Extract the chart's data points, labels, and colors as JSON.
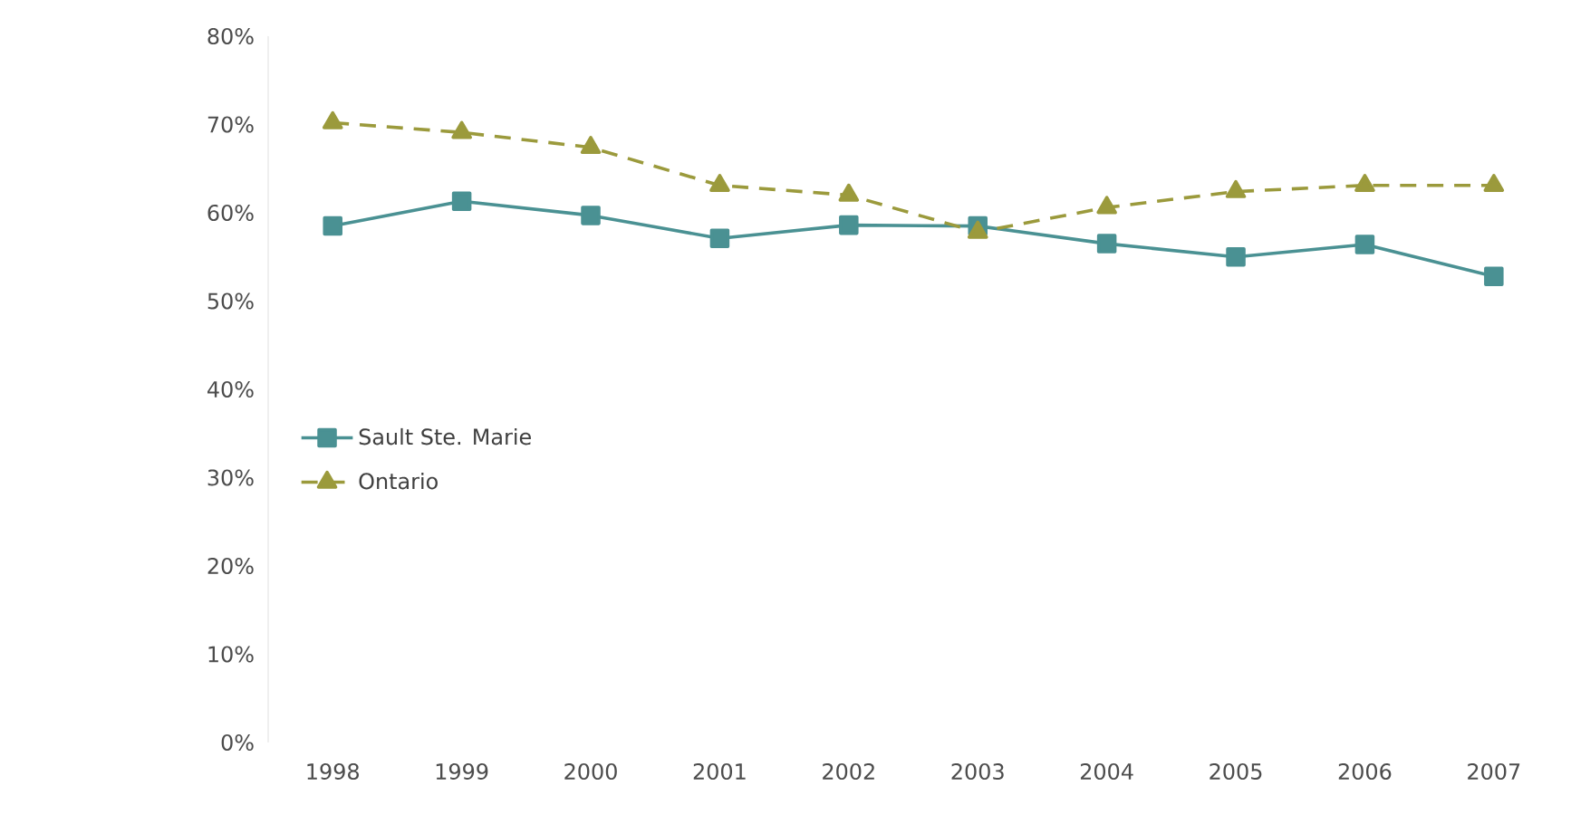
{
  "chart_data": {
    "type": "line",
    "categories": [
      "1998",
      "1999",
      "2000",
      "2001",
      "2002",
      "2003",
      "2004",
      "2005",
      "2006",
      "2007"
    ],
    "series": [
      {
        "name": "Sault Ste. Marie",
        "color": "#4a9193",
        "marker": "square",
        "line_style": "solid",
        "values": [
          58.5,
          61.3,
          59.7,
          57.1,
          58.6,
          58.5,
          56.5,
          55,
          56.4,
          52.8
        ]
      },
      {
        "name": "Ontario",
        "color": "#9b9a3c",
        "marker": "triangle",
        "line_style": "dashed",
        "values": [
          70.2,
          69.1,
          67.4,
          63.1,
          62,
          57.8,
          60.6,
          62.4,
          63.1,
          63.1
        ]
      }
    ],
    "ylim": [
      0,
      80
    ],
    "yticks": [
      {
        "value": 0,
        "label": "0%"
      },
      {
        "value": 10,
        "label": "10%"
      },
      {
        "value": 20,
        "label": "20%"
      },
      {
        "value": 30,
        "label": "30%"
      },
      {
        "value": 40,
        "label": "40%"
      },
      {
        "value": 50,
        "label": "50%"
      },
      {
        "value": 60,
        "label": "60%"
      },
      {
        "value": 70,
        "label": "70%"
      },
      {
        "value": 80,
        "label": "80%"
      }
    ],
    "grid": false,
    "legend": "left"
  }
}
